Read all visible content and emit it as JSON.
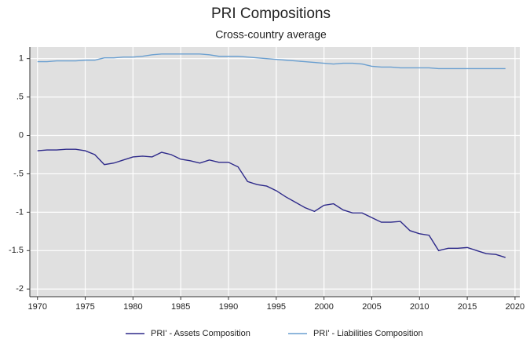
{
  "chart_data": {
    "type": "line",
    "title": "PRI Compositions",
    "subtitle": "Cross-country average",
    "x": [
      1970,
      1971,
      1972,
      1973,
      1974,
      1975,
      1976,
      1977,
      1978,
      1979,
      1980,
      1981,
      1982,
      1983,
      1984,
      1985,
      1986,
      1987,
      1988,
      1989,
      1990,
      1991,
      1992,
      1993,
      1994,
      1995,
      1996,
      1997,
      1998,
      1999,
      2000,
      2001,
      2002,
      2003,
      2004,
      2005,
      2006,
      2007,
      2008,
      2009,
      2010,
      2011,
      2012,
      2013,
      2014,
      2015,
      2016,
      2017,
      2018,
      2019
    ],
    "series": [
      {
        "name": "PRI' - Assets Composition",
        "color": "#2e2a8a",
        "values": [
          -0.2,
          -0.19,
          -0.19,
          -0.18,
          -0.18,
          -0.2,
          -0.25,
          -0.38,
          -0.36,
          -0.32,
          -0.28,
          -0.27,
          -0.28,
          -0.22,
          -0.25,
          -0.31,
          -0.33,
          -0.36,
          -0.32,
          -0.35,
          -0.35,
          -0.41,
          -0.6,
          -0.64,
          -0.66,
          -0.72,
          -0.8,
          -0.87,
          -0.94,
          -0.99,
          -0.91,
          -0.89,
          -0.97,
          -1.01,
          -1.01,
          -1.07,
          -1.13,
          -1.13,
          -1.12,
          -1.24,
          -1.28,
          -1.3,
          -1.5,
          -1.47,
          -1.47,
          -1.46,
          -1.5,
          -1.54,
          -1.55,
          -1.59
        ]
      },
      {
        "name": "PRI' - Liabilities Composition",
        "color": "#6a9fd0",
        "values": [
          0.96,
          0.96,
          0.97,
          0.97,
          0.97,
          0.98,
          0.98,
          1.01,
          1.01,
          1.02,
          1.02,
          1.03,
          1.05,
          1.06,
          1.06,
          1.06,
          1.06,
          1.06,
          1.05,
          1.03,
          1.03,
          1.03,
          1.02,
          1.01,
          1.0,
          0.99,
          0.98,
          0.97,
          0.96,
          0.95,
          0.94,
          0.93,
          0.94,
          0.94,
          0.93,
          0.9,
          0.89,
          0.89,
          0.88,
          0.88,
          0.88,
          0.88,
          0.87,
          0.87,
          0.87,
          0.87,
          0.87,
          0.87,
          0.87,
          0.87
        ]
      }
    ],
    "xlim": [
      1969.2,
      2020.5
    ],
    "xticks": [
      1970,
      1975,
      1980,
      1985,
      1990,
      1995,
      2000,
      2005,
      2010,
      2015,
      2020
    ],
    "ylim": [
      -2.1,
      1.15
    ],
    "yticks": [
      1,
      {
        "value": 0.5,
        "label": ".5"
      },
      0,
      {
        "value": -0.5,
        "label": "-.5"
      },
      -1,
      -1.5,
      -2
    ],
    "grid": true
  }
}
